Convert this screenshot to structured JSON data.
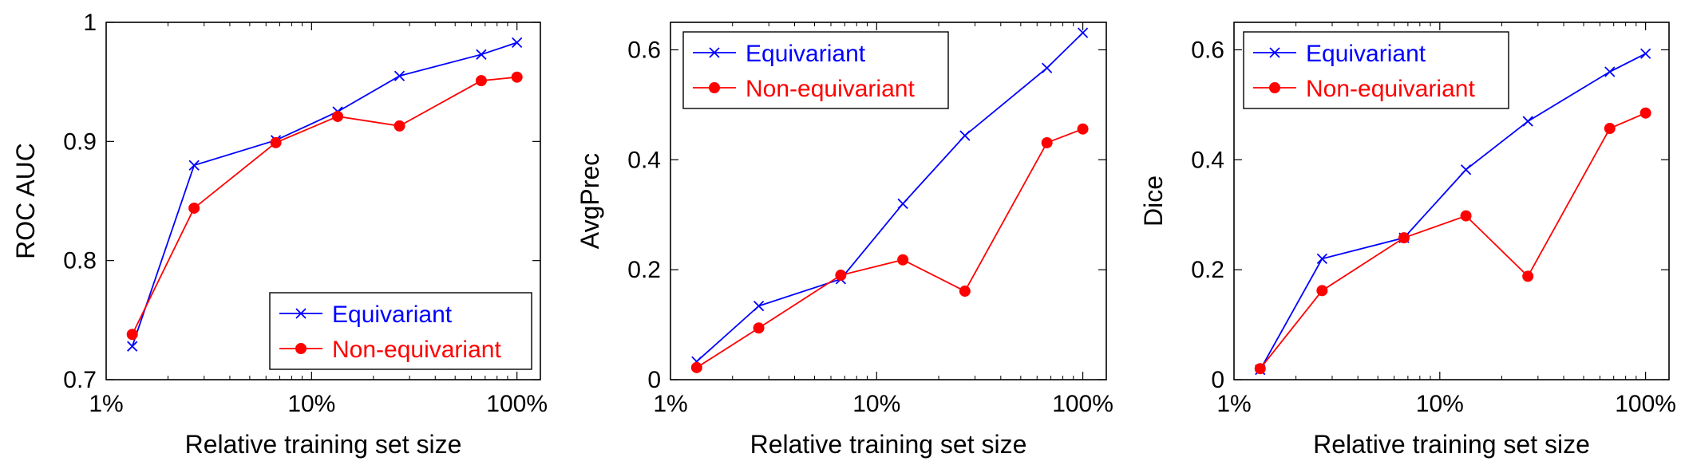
{
  "chart_data": [
    {
      "type": "line",
      "title": "",
      "xlabel": "Relative training set size",
      "ylabel": "ROC AUC",
      "xscale": "log",
      "xlim": [
        1.0,
        130.0
      ],
      "ylim": [
        0.7,
        1.0
      ],
      "x_ticks": [
        1,
        10,
        100
      ],
      "x_tick_labels": [
        "1%",
        "10%",
        "100%"
      ],
      "y_ticks": [
        0.7,
        0.8,
        0.9,
        1.0
      ],
      "y_tick_labels": [
        "0.7",
        "0.8",
        "0.9",
        "1"
      ],
      "x": [
        1.34,
        2.68,
        6.7,
        13.4,
        26.8,
        67,
        100
      ],
      "legend_position": "bottom-right",
      "series": [
        {
          "name": "Equivariant",
          "color": "#0000ff",
          "marker": "x",
          "values": [
            0.728,
            0.88,
            0.901,
            0.925,
            0.955,
            0.973,
            0.983
          ]
        },
        {
          "name": "Non-equivariant",
          "color": "#ff0000",
          "marker": "dot",
          "values": [
            0.738,
            0.844,
            0.899,
            0.921,
            0.913,
            0.951,
            0.954
          ]
        }
      ]
    },
    {
      "type": "line",
      "title": "",
      "xlabel": "Relative training set size",
      "ylabel": "AvgPrec",
      "xscale": "log",
      "xlim": [
        1.0,
        130.0
      ],
      "ylim": [
        0.0,
        0.65
      ],
      "x_ticks": [
        1,
        10,
        100
      ],
      "x_tick_labels": [
        "1%",
        "10%",
        "100%"
      ],
      "y_ticks": [
        0,
        0.2,
        0.4,
        0.6
      ],
      "y_tick_labels": [
        "0",
        "0.2",
        "0.4",
        "0.6"
      ],
      "x": [
        1.34,
        2.68,
        6.7,
        13.4,
        26.8,
        67,
        100
      ],
      "legend_position": "top-left",
      "series": [
        {
          "name": "Equivariant",
          "color": "#0000ff",
          "marker": "x",
          "values": [
            0.033,
            0.134,
            0.183,
            0.32,
            0.444,
            0.567,
            0.631
          ]
        },
        {
          "name": "Non-equivariant",
          "color": "#ff0000",
          "marker": "dot",
          "values": [
            0.022,
            0.094,
            0.19,
            0.218,
            0.161,
            0.431,
            0.456
          ]
        }
      ]
    },
    {
      "type": "line",
      "title": "",
      "xlabel": "Relative training set size",
      "ylabel": "Dice",
      "xscale": "log",
      "xlim": [
        1.0,
        130.0
      ],
      "ylim": [
        0.0,
        0.65
      ],
      "x_ticks": [
        1,
        10,
        100
      ],
      "x_tick_labels": [
        "1%",
        "10%",
        "100%"
      ],
      "y_ticks": [
        0,
        0.2,
        0.4,
        0.6
      ],
      "y_tick_labels": [
        "0",
        "0.2",
        "0.4",
        "0.6"
      ],
      "x": [
        1.34,
        2.68,
        6.7,
        13.4,
        26.8,
        67,
        100
      ],
      "legend_position": "top-left",
      "series": [
        {
          "name": "Equivariant",
          "color": "#0000ff",
          "marker": "x",
          "values": [
            0.018,
            0.22,
            0.258,
            0.382,
            0.47,
            0.56,
            0.593
          ]
        },
        {
          "name": "Non-equivariant",
          "color": "#ff0000",
          "marker": "dot",
          "values": [
            0.02,
            0.162,
            0.258,
            0.298,
            0.188,
            0.457,
            0.485
          ]
        }
      ]
    }
  ]
}
